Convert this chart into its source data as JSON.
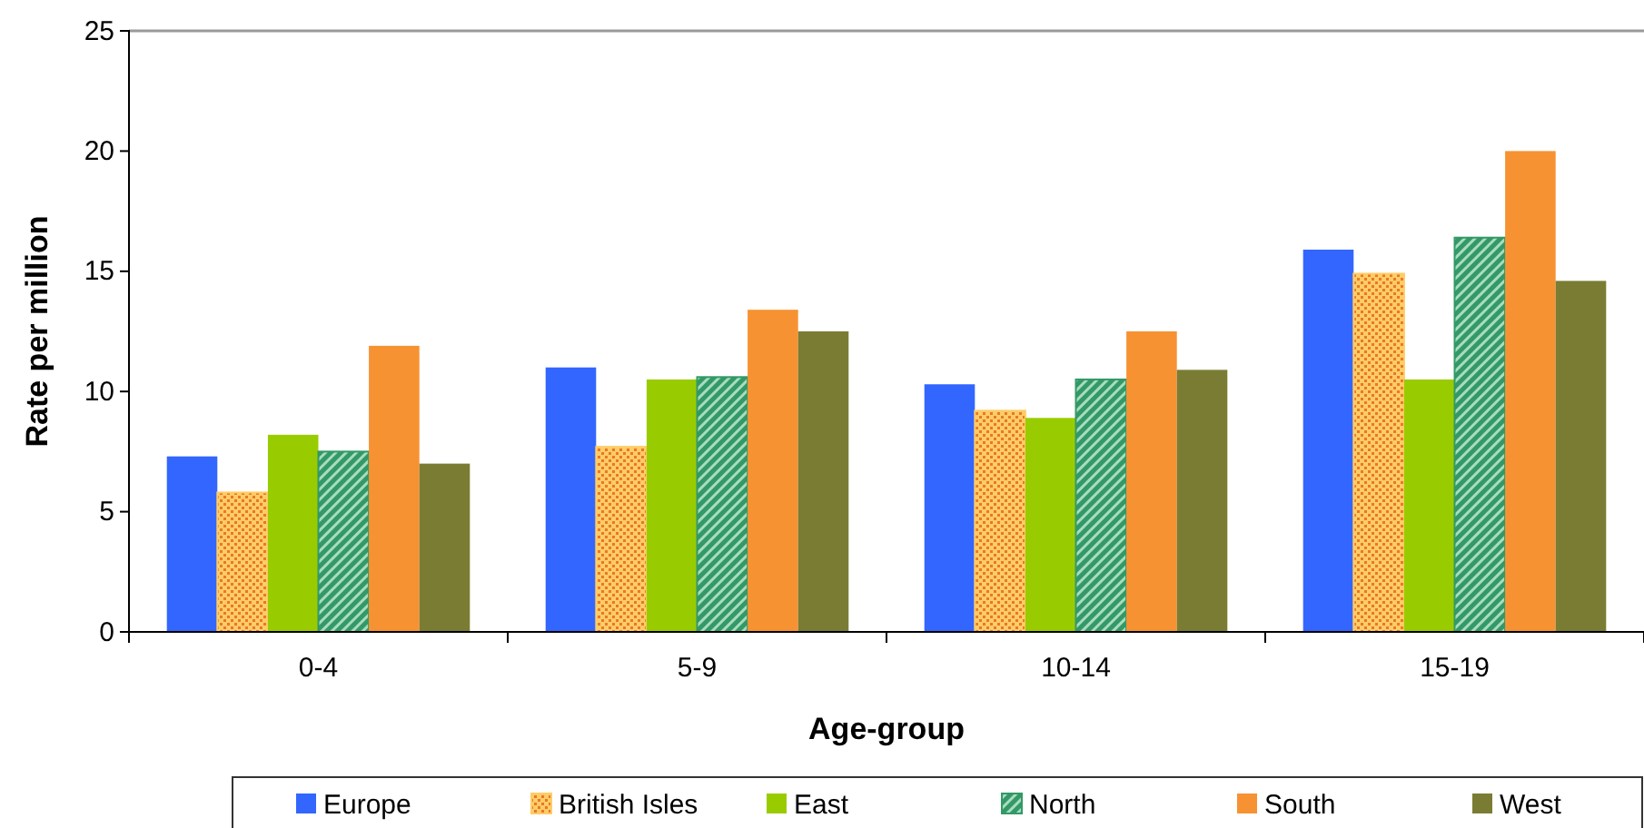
{
  "chart_data": {
    "type": "bar",
    "xlabel": "Age-group",
    "ylabel": "Rate per million",
    "categories": [
      "0-4",
      "5-9",
      "10-14",
      "15-19"
    ],
    "series": [
      {
        "name": "Europe",
        "color": "#3366ff",
        "values": [
          7.3,
          11.0,
          10.3,
          15.9
        ]
      },
      {
        "name": "British Isles",
        "color": "#ffcc66",
        "values": [
          5.8,
          7.7,
          9.2,
          14.9
        ]
      },
      {
        "name": "East",
        "color": "#99cc00",
        "values": [
          8.2,
          10.5,
          8.9,
          10.5
        ]
      },
      {
        "name": "North",
        "color": "#339966",
        "values": [
          7.5,
          10.6,
          10.5,
          16.4
        ]
      },
      {
        "name": "South",
        "color": "#f79232",
        "values": [
          11.9,
          13.4,
          12.5,
          20.0
        ]
      },
      {
        "name": "West",
        "color": "#7a7c33",
        "values": [
          7.0,
          12.5,
          10.9,
          14.6
        ]
      }
    ],
    "ylim": [
      0,
      25
    ],
    "yticks": [
      0,
      5,
      10,
      15,
      20,
      25
    ],
    "grid": false,
    "legend": "bottom"
  }
}
